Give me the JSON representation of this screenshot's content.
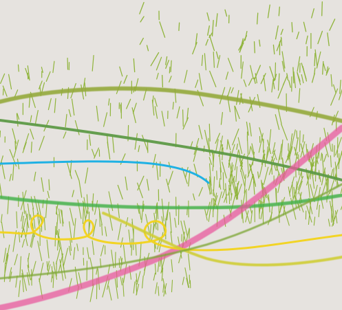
{
  "artwork": {
    "background_color": "#e6e3df",
    "strokes": [
      {
        "name": "olive-green-arc",
        "color": "#93a83c",
        "opacity": 0.9
      },
      {
        "name": "dark-green-diagonal",
        "color": "#5e9a47",
        "opacity": 0.95
      },
      {
        "name": "cyan-curve",
        "color": "#1fb1e4",
        "opacity": 1
      },
      {
        "name": "bright-green-curve",
        "color": "#45b24a",
        "opacity": 0.85
      },
      {
        "name": "pink-magenta-stroke",
        "color": "#e85a9e",
        "opacity": 0.75
      },
      {
        "name": "yellow-loop-curve",
        "color": "#f2d31a",
        "opacity": 0.95
      },
      {
        "name": "mustard-curve",
        "color": "#cfcd34",
        "opacity": 0.9
      },
      {
        "name": "lower-olive-curve",
        "color": "#7ea83a",
        "opacity": 0.8
      }
    ],
    "grass_color": "#8fb43a"
  }
}
